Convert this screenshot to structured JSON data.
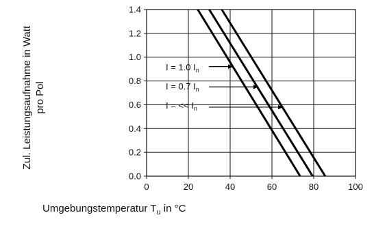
{
  "chart_data": {
    "type": "line",
    "xlabel": {
      "main": "Umgebungstemperatur T",
      "sub": "u",
      "suffix": " in °C"
    },
    "ylabel": [
      "Zul. Leistungsaufnahme in Watt",
      "pro Pol"
    ],
    "xlim": [
      0,
      100
    ],
    "ylim": [
      0,
      1.4
    ],
    "xticks": [
      0,
      20,
      40,
      60,
      80,
      100
    ],
    "xtick_labels": [
      "0",
      "20",
      "40",
      "60",
      "80",
      "100"
    ],
    "yticks": [
      0,
      0.2,
      0.4,
      0.6,
      0.8,
      1.0,
      1.2,
      1.4
    ],
    "ytick_labels": [
      "0.0",
      "0.2",
      "0.4",
      "0.6",
      "0.8",
      "1.0",
      "1.2",
      "1.4"
    ],
    "grid": true,
    "series": [
      {
        "label_main": "I = 1.0 I",
        "label_sub": "n",
        "x": [
          24.5,
          73.5
        ],
        "y": [
          1.4,
          0
        ]
      },
      {
        "label_main": "I = 0.7 I",
        "label_sub": "n",
        "x": [
          30,
          79.5
        ],
        "y": [
          1.4,
          0
        ]
      },
      {
        "label_main": "I = << I",
        "label_sub": "n",
        "x": [
          36,
          85.5
        ],
        "y": [
          1.4,
          0
        ]
      }
    ]
  }
}
